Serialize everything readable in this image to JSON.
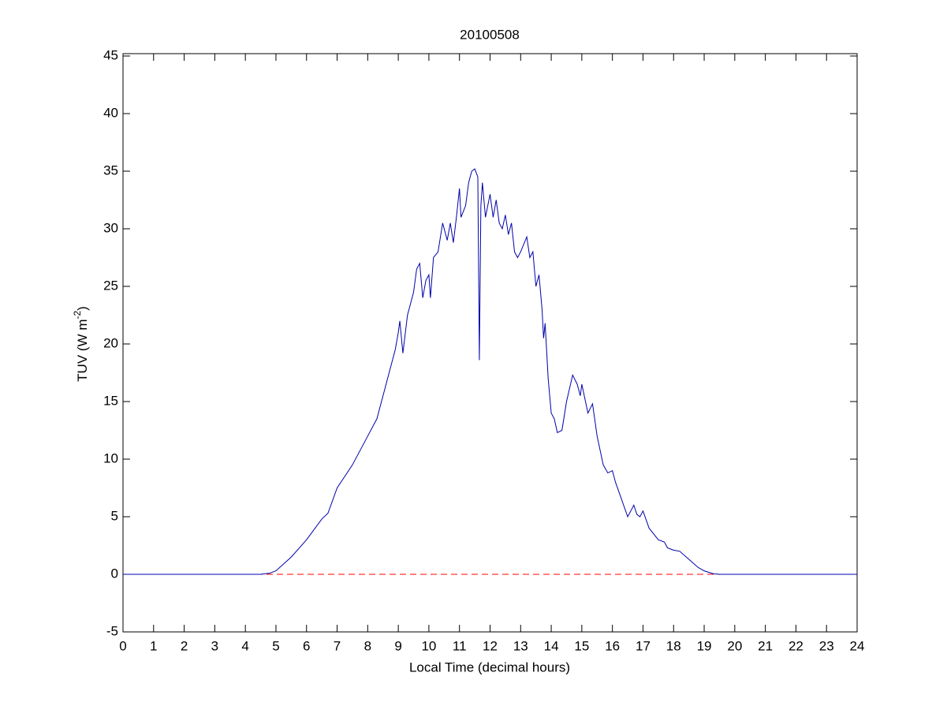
{
  "chart_data": {
    "type": "line",
    "title": "20100508",
    "xlabel": "Local Time (decimal hours)",
    "ylabel": {
      "text": "TUV (W m",
      "superscript": "-2",
      "suffix": ")"
    },
    "xlim": [
      0,
      24
    ],
    "xticks": [
      0,
      1,
      2,
      3,
      4,
      5,
      6,
      7,
      8,
      9,
      10,
      11,
      12,
      13,
      14,
      15,
      16,
      17,
      18,
      19,
      20,
      21,
      22,
      23,
      24
    ],
    "ylim": [
      -5,
      45
    ],
    "yticks": [
      -5,
      0,
      5,
      10,
      15,
      20,
      25,
      30,
      35,
      40,
      45
    ],
    "grid": false,
    "reference_line": {
      "y": 0,
      "color": "#ff0000",
      "dashed": true
    },
    "series": [
      {
        "color": "#0000aa",
        "x": [
          0,
          4.5,
          4.8,
          5,
          5.5,
          6,
          6.5,
          6.7,
          7,
          7.5,
          8,
          8.3,
          8.6,
          8.9,
          9,
          9.05,
          9.15,
          9.3,
          9.5,
          9.6,
          9.7,
          9.8,
          9.9,
          10,
          10.05,
          10.15,
          10.3,
          10.45,
          10.6,
          10.7,
          10.8,
          10.9,
          11,
          11.05,
          11.2,
          11.3,
          11.4,
          11.5,
          11.6,
          11.65,
          11.7,
          11.75,
          11.85,
          12,
          12.1,
          12.2,
          12.3,
          12.4,
          12.5,
          12.6,
          12.7,
          12.8,
          12.9,
          13,
          13.2,
          13.3,
          13.4,
          13.5,
          13.6,
          13.7,
          13.75,
          13.8,
          13.9,
          14,
          14.1,
          14.2,
          14.35,
          14.5,
          14.7,
          14.85,
          14.95,
          15,
          15.2,
          15.35,
          15.5,
          15.7,
          15.85,
          16,
          16.1,
          16.3,
          16.5,
          16.6,
          16.7,
          16.8,
          16.9,
          17,
          17.2,
          17.5,
          17.7,
          17.8,
          18,
          18.2,
          18.5,
          18.8,
          19,
          19.3,
          19.5,
          24
        ],
        "values": [
          0,
          0,
          0.1,
          0.3,
          1.5,
          3,
          4.8,
          5.3,
          7.5,
          9.5,
          12,
          13.5,
          16.5,
          19.5,
          21,
          22,
          19.2,
          22.5,
          24.5,
          26.5,
          27,
          24,
          25.5,
          26,
          24,
          27.5,
          28,
          30.5,
          29,
          30.5,
          28.8,
          31,
          33.5,
          31,
          32,
          34,
          35,
          35.2,
          34.5,
          18.6,
          32,
          34,
          31,
          33,
          31,
          32.5,
          30.5,
          30,
          31.2,
          29.5,
          30.5,
          28,
          27.5,
          28,
          29.3,
          27.5,
          28,
          25,
          26,
          23,
          20.5,
          21.8,
          17,
          14,
          13.5,
          12.3,
          12.5,
          15,
          17.3,
          16.5,
          15.5,
          16.5,
          14,
          14.8,
          12,
          9.5,
          8.8,
          9,
          8,
          6.5,
          5,
          5.5,
          6,
          5.2,
          5,
          5.5,
          4,
          3,
          2.8,
          2.3,
          2.1,
          2.0,
          1.3,
          0.6,
          0.3,
          0.05,
          0,
          0
        ]
      }
    ]
  }
}
